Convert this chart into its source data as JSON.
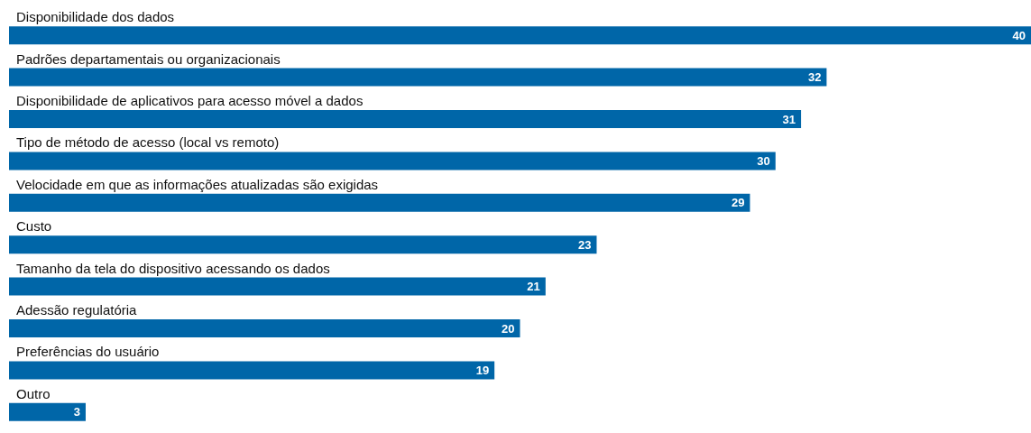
{
  "chart_data": {
    "type": "bar",
    "orientation": "horizontal",
    "categories": [
      "Disponibilidade dos dados",
      "Padrões departamentais ou organizacionais",
      "Disponibilidade de aplicativos para acesso móvel a dados",
      "Tipo de método de acesso (local vs remoto)",
      "Velocidade em que as informações atualizadas são exigidas",
      "Custo",
      "Tamanho da tela do dispositivo acessando os dados",
      "Adessão regulatória",
      "Preferências do usuário",
      "Outro"
    ],
    "values": [
      40,
      32,
      31,
      30,
      29,
      23,
      21,
      20,
      19,
      3
    ],
    "color": "#0066a8",
    "xlim": [
      0,
      40
    ],
    "data_labels": true
  }
}
